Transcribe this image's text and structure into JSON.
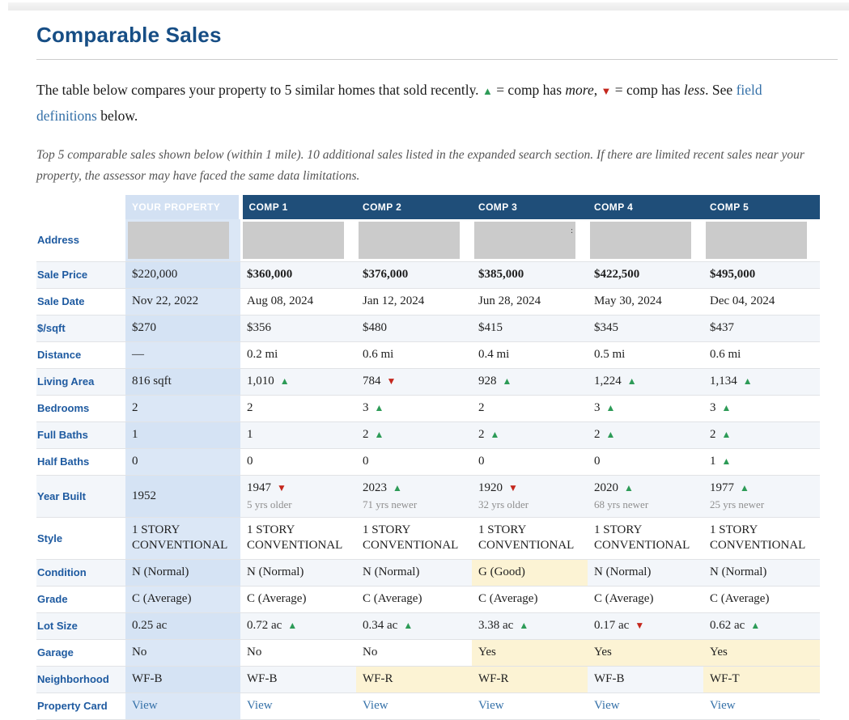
{
  "header": {
    "title": "Comparable Sales"
  },
  "intro": {
    "segments": [
      {
        "text": "The table below compares your property to 5 similar homes that sold recently.  ",
        "style": "normal"
      },
      {
        "text": "▲",
        "style": "up-arrow"
      },
      {
        "text": " = comp has ",
        "style": "normal"
      },
      {
        "text": "more",
        "style": "italic"
      },
      {
        "text": ",  ",
        "style": "normal"
      },
      {
        "text": "▼",
        "style": "down-arrow"
      },
      {
        "text": " = comp has ",
        "style": "normal"
      },
      {
        "text": "less",
        "style": "italic"
      },
      {
        "text": ". See ",
        "style": "normal"
      },
      {
        "text": "field definitions",
        "style": "link"
      },
      {
        "text": " below.",
        "style": "normal"
      }
    ]
  },
  "note": "Top 5 comparable sales shown below (within 1 mile). 10 additional sales listed in the expanded search section. If there are limited recent sales near your property, the assessor may have faced the same data limitations.",
  "colors": {
    "comp_header_bg": "#1f4e79",
    "subject_header_bg": "#d3e1f3",
    "up_arrow": "#2d9b57",
    "down_arrow": "#c4271d",
    "link": "#3470a8",
    "row_label": "#1e5aa0",
    "heading": "#174e85",
    "highlight": "#fcf3d4",
    "stripe": "#f3f6fa",
    "redacted_box": "#cbcbcb"
  },
  "table": {
    "columns": [
      {
        "label": "YOUR PROPERTY",
        "type": "subject"
      },
      {
        "label": "COMP 1"
      },
      {
        "label": "COMP 2"
      },
      {
        "label": "COMP 3"
      },
      {
        "label": "COMP 4"
      },
      {
        "label": "COMP 5"
      }
    ],
    "rows": [
      {
        "label": "Address",
        "type": "address",
        "cells": [
          {
            "redacted": true
          },
          {
            "redacted": true
          },
          {
            "redacted": true
          },
          {
            "redacted": true,
            "artifact": ":"
          },
          {
            "redacted": true
          },
          {
            "redacted": true
          }
        ]
      },
      {
        "label": "Sale Price",
        "cells": [
          {
            "text": "$220,000"
          },
          {
            "text": "$360,000",
            "bold": true
          },
          {
            "text": "$376,000",
            "bold": true
          },
          {
            "text": "$385,000",
            "bold": true
          },
          {
            "text": "$422,500",
            "bold": true
          },
          {
            "text": "$495,000",
            "bold": true
          }
        ]
      },
      {
        "label": "Sale Date",
        "cells": [
          {
            "text": "Nov 22, 2022"
          },
          {
            "text": "Aug 08, 2024"
          },
          {
            "text": "Jan 12, 2024"
          },
          {
            "text": "Jun 28, 2024"
          },
          {
            "text": "May 30, 2024"
          },
          {
            "text": "Dec 04, 2024"
          }
        ]
      },
      {
        "label": "$/sqft",
        "cells": [
          {
            "text": "$270"
          },
          {
            "text": "$356"
          },
          {
            "text": "$480"
          },
          {
            "text": "$415"
          },
          {
            "text": "$345"
          },
          {
            "text": "$437"
          }
        ]
      },
      {
        "label": "Distance",
        "cells": [
          {
            "text": "—"
          },
          {
            "text": "0.2 mi"
          },
          {
            "text": "0.6 mi"
          },
          {
            "text": "0.4 mi"
          },
          {
            "text": "0.5 mi"
          },
          {
            "text": "0.6 mi"
          }
        ]
      },
      {
        "label": "Living Area",
        "cells": [
          {
            "text": "816 sqft"
          },
          {
            "text": "1,010",
            "arrow": "up"
          },
          {
            "text": "784",
            "arrow": "down"
          },
          {
            "text": "928",
            "arrow": "up"
          },
          {
            "text": "1,224",
            "arrow": "up"
          },
          {
            "text": "1,134",
            "arrow": "up"
          }
        ]
      },
      {
        "label": "Bedrooms",
        "cells": [
          {
            "text": "2"
          },
          {
            "text": "2"
          },
          {
            "text": "3",
            "arrow": "up"
          },
          {
            "text": "2"
          },
          {
            "text": "3",
            "arrow": "up"
          },
          {
            "text": "3",
            "arrow": "up"
          }
        ]
      },
      {
        "label": "Full Baths",
        "cells": [
          {
            "text": "1"
          },
          {
            "text": "1"
          },
          {
            "text": "2",
            "arrow": "up"
          },
          {
            "text": "2",
            "arrow": "up"
          },
          {
            "text": "2",
            "arrow": "up"
          },
          {
            "text": "2",
            "arrow": "up"
          }
        ]
      },
      {
        "label": "Half Baths",
        "cells": [
          {
            "text": "0"
          },
          {
            "text": "0"
          },
          {
            "text": "0"
          },
          {
            "text": "0"
          },
          {
            "text": "0"
          },
          {
            "text": "1",
            "arrow": "up"
          }
        ]
      },
      {
        "label": "Year Built",
        "cells": [
          {
            "text": "1952"
          },
          {
            "text": "1947",
            "arrow": "down",
            "sub": "5 yrs older"
          },
          {
            "text": "2023",
            "arrow": "up",
            "sub": "71 yrs newer"
          },
          {
            "text": "1920",
            "arrow": "down",
            "sub": "32 yrs older"
          },
          {
            "text": "2020",
            "arrow": "up",
            "sub": "68 yrs newer"
          },
          {
            "text": "1977",
            "arrow": "up",
            "sub": "25 yrs newer"
          }
        ]
      },
      {
        "label": "Style",
        "cells": [
          {
            "text": "1 STORY CONVENTIONAL"
          },
          {
            "text": "1 STORY CONVENTIONAL"
          },
          {
            "text": "1 STORY CONVENTIONAL"
          },
          {
            "text": "1 STORY CONVENTIONAL"
          },
          {
            "text": "1 STORY CONVENTIONAL"
          },
          {
            "text": "1 STORY CONVENTIONAL"
          }
        ]
      },
      {
        "label": "Condition",
        "cells": [
          {
            "text": "N (Normal)"
          },
          {
            "text": "N (Normal)"
          },
          {
            "text": "N (Normal)"
          },
          {
            "text": "G (Good)",
            "highlight": true
          },
          {
            "text": "N (Normal)"
          },
          {
            "text": "N (Normal)"
          }
        ]
      },
      {
        "label": "Grade",
        "cells": [
          {
            "text": "C (Average)"
          },
          {
            "text": "C (Average)"
          },
          {
            "text": "C (Average)"
          },
          {
            "text": "C (Average)"
          },
          {
            "text": "C (Average)"
          },
          {
            "text": "C (Average)"
          }
        ]
      },
      {
        "label": "Lot Size",
        "cells": [
          {
            "text": "0.25 ac"
          },
          {
            "text": "0.72 ac",
            "arrow": "up"
          },
          {
            "text": "0.34 ac",
            "arrow": "up"
          },
          {
            "text": "3.38 ac",
            "arrow": "up"
          },
          {
            "text": "0.17 ac",
            "arrow": "down"
          },
          {
            "text": "0.62 ac",
            "arrow": "up"
          }
        ]
      },
      {
        "label": "Garage",
        "cells": [
          {
            "text": "No"
          },
          {
            "text": "No"
          },
          {
            "text": "No"
          },
          {
            "text": "Yes",
            "highlight": true
          },
          {
            "text": "Yes",
            "highlight": true
          },
          {
            "text": "Yes",
            "highlight": true
          }
        ]
      },
      {
        "label": "Neighborhood",
        "cells": [
          {
            "text": "WF-B"
          },
          {
            "text": "WF-B"
          },
          {
            "text": "WF-R",
            "highlight": true
          },
          {
            "text": "WF-R",
            "highlight": true
          },
          {
            "text": "WF-B"
          },
          {
            "text": "WF-T",
            "highlight": true
          }
        ]
      },
      {
        "label": "Property Card",
        "cells": [
          {
            "text": "View",
            "link": true
          },
          {
            "text": "View",
            "link": true
          },
          {
            "text": "View",
            "link": true
          },
          {
            "text": "View",
            "link": true
          },
          {
            "text": "View",
            "link": true
          },
          {
            "text": "View",
            "link": true
          }
        ]
      }
    ]
  }
}
